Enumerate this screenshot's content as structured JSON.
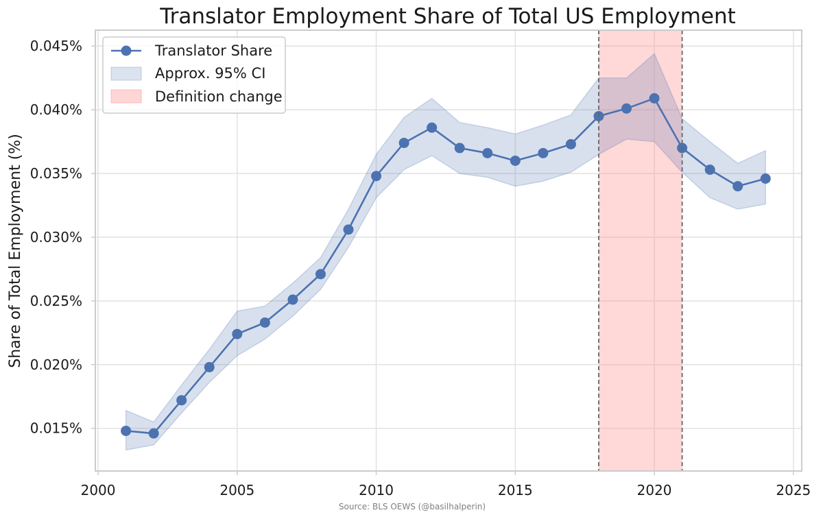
{
  "chart_data": {
    "type": "line",
    "title": "Translator Employment Share of Total US Employment",
    "xlabel": "",
    "ylabel": "Share of Total Employment (%)",
    "xlim": [
      1999.9,
      2025.3
    ],
    "ylim": [
      0.01165,
      0.04625
    ],
    "x_ticks": [
      2000,
      2005,
      2010,
      2015,
      2020,
      2025
    ],
    "x_tick_labels": [
      "2000",
      "2005",
      "2010",
      "2015",
      "2020",
      "2025"
    ],
    "y_ticks": [
      0.015,
      0.02,
      0.025,
      0.03,
      0.035,
      0.04,
      0.045
    ],
    "y_tick_labels": [
      "0.015%",
      "0.020%",
      "0.025%",
      "0.030%",
      "0.035%",
      "0.040%",
      "0.045%"
    ],
    "grid": true,
    "legend_position": "top-left",
    "x": [
      2001,
      2002,
      2003,
      2004,
      2005,
      2006,
      2007,
      2008,
      2009,
      2010,
      2011,
      2012,
      2013,
      2014,
      2015,
      2016,
      2017,
      2018,
      2019,
      2020,
      2021,
      2022,
      2023,
      2024
    ],
    "series": [
      {
        "name": "Translator Share",
        "color": "#4c72b0",
        "values": [
          0.0148,
          0.0146,
          0.0172,
          0.0198,
          0.0224,
          0.0233,
          0.0251,
          0.0271,
          0.0306,
          0.0348,
          0.0374,
          0.0386,
          0.037,
          0.0366,
          0.036,
          0.0366,
          0.0373,
          0.0395,
          0.0401,
          0.0409,
          0.037,
          0.0353,
          0.034,
          0.0346
        ]
      }
    ],
    "confidence_band": {
      "name": "Approx. 95% CI",
      "color": "#4c72b0",
      "lower": [
        0.0133,
        0.0137,
        0.0162,
        0.0186,
        0.0207,
        0.022,
        0.0238,
        0.0259,
        0.0292,
        0.0331,
        0.0353,
        0.0364,
        0.035,
        0.0347,
        0.034,
        0.0344,
        0.0351,
        0.0365,
        0.0377,
        0.0375,
        0.0351,
        0.0331,
        0.0322,
        0.0326
      ],
      "upper": [
        0.0164,
        0.0155,
        0.0184,
        0.0212,
        0.0242,
        0.0246,
        0.0264,
        0.0284,
        0.0322,
        0.0365,
        0.0394,
        0.0409,
        0.039,
        0.0386,
        0.0381,
        0.0388,
        0.0396,
        0.0425,
        0.0425,
        0.0444,
        0.0393,
        0.0375,
        0.0358,
        0.0368
      ]
    },
    "highlight_region": {
      "name": "Definition change",
      "color": "#ff9999",
      "x_start": 2018,
      "x_end": 2021
    },
    "legend": [
      "Translator Share",
      "Approx. 95% CI",
      "Definition change"
    ],
    "source_note": "Source: BLS OEWS (@basilhalperin)"
  }
}
